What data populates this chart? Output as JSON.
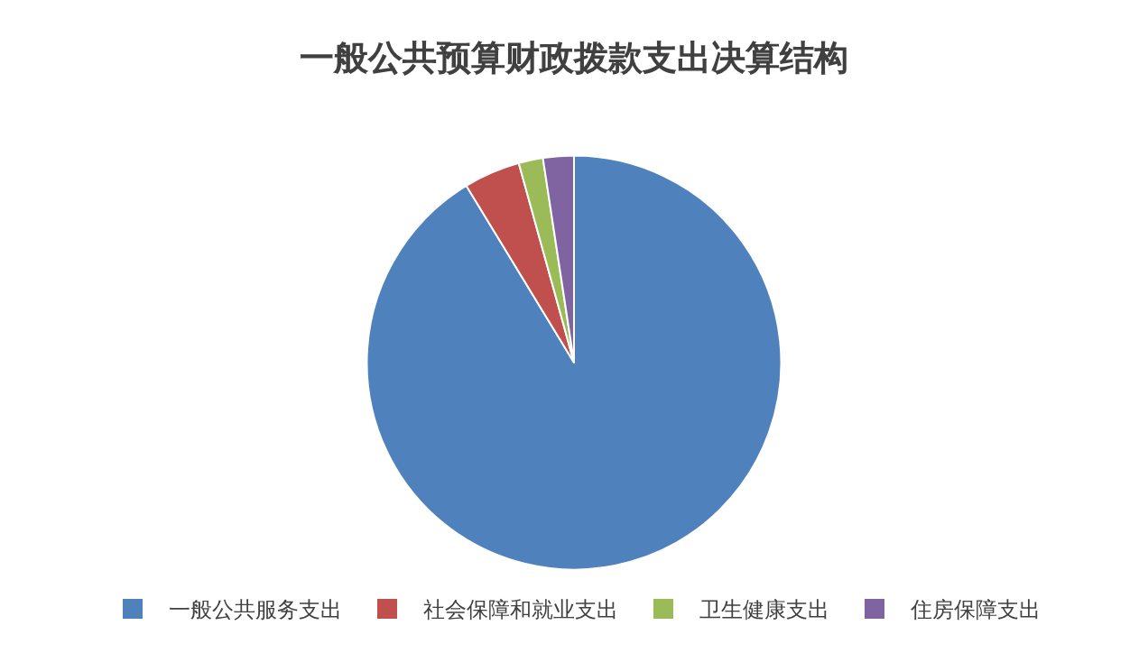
{
  "chart_data": {
    "type": "pie",
    "title": "一般公共预算财政拨款支出决算结构",
    "categories": [
      "一般公共服务支出",
      "社会保障和就业支出",
      "卫生健康支出",
      "住房保障支出"
    ],
    "values": [
      91.3,
      4.4,
      1.9,
      2.4
    ],
    "colors": [
      "#4f81bd",
      "#c0504d",
      "#9bbb59",
      "#8064a2"
    ],
    "legend": "bottom"
  }
}
